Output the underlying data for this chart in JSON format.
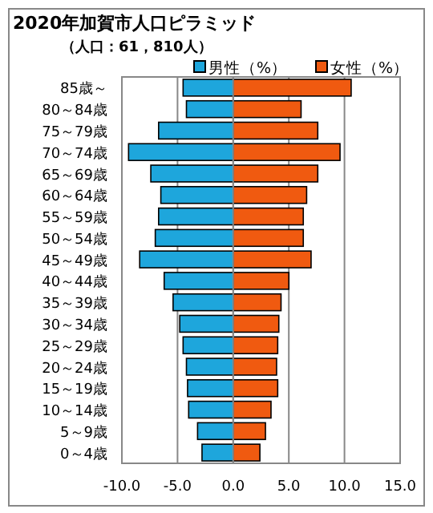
{
  "chart_data": {
    "type": "bar",
    "orientation": "horizontal",
    "stacked": true,
    "title": "2020年加賀市人口ピラミッド",
    "subtitle": "（人口：61，810人）",
    "categories": [
      "85歳～",
      "80～84歳",
      "75～79歳",
      "70～74歳",
      "65～69歳",
      "60～64歳",
      "55～59歳",
      "50～54歳",
      "45～49歳",
      "40～44歳",
      "35～39歳",
      "30～34歳",
      "25～29歳",
      "20～24歳",
      "15～19歳",
      "10～14歳",
      "5～9歳",
      "0～4歳"
    ],
    "series": [
      {
        "name": "男性（%）",
        "color": "#1ea6dc",
        "values": [
          -4.5,
          -4.2,
          -6.7,
          -9.4,
          -7.4,
          -6.5,
          -6.7,
          -7.0,
          -8.4,
          -6.2,
          -5.4,
          -4.8,
          -4.5,
          -4.2,
          -4.1,
          -4.0,
          -3.2,
          -2.8
        ]
      },
      {
        "name": "女性（%）",
        "color": "#f05a10",
        "values": [
          10.6,
          6.1,
          7.6,
          9.6,
          7.6,
          6.6,
          6.3,
          6.3,
          7.0,
          5.0,
          4.3,
          4.1,
          4.0,
          3.9,
          4.0,
          3.4,
          2.9,
          2.4
        ]
      }
    ],
    "xlim": [
      -10,
      15
    ],
    "xticks": [
      {
        "value": -10,
        "label": "-10.0"
      },
      {
        "value": -5,
        "label": "-5.0"
      },
      {
        "value": 0,
        "label": "0.0"
      },
      {
        "value": 5,
        "label": "5.0"
      },
      {
        "value": 10,
        "label": "10.0"
      },
      {
        "value": 15,
        "label": "15.0"
      }
    ],
    "grid": "x",
    "legend": "top right"
  }
}
